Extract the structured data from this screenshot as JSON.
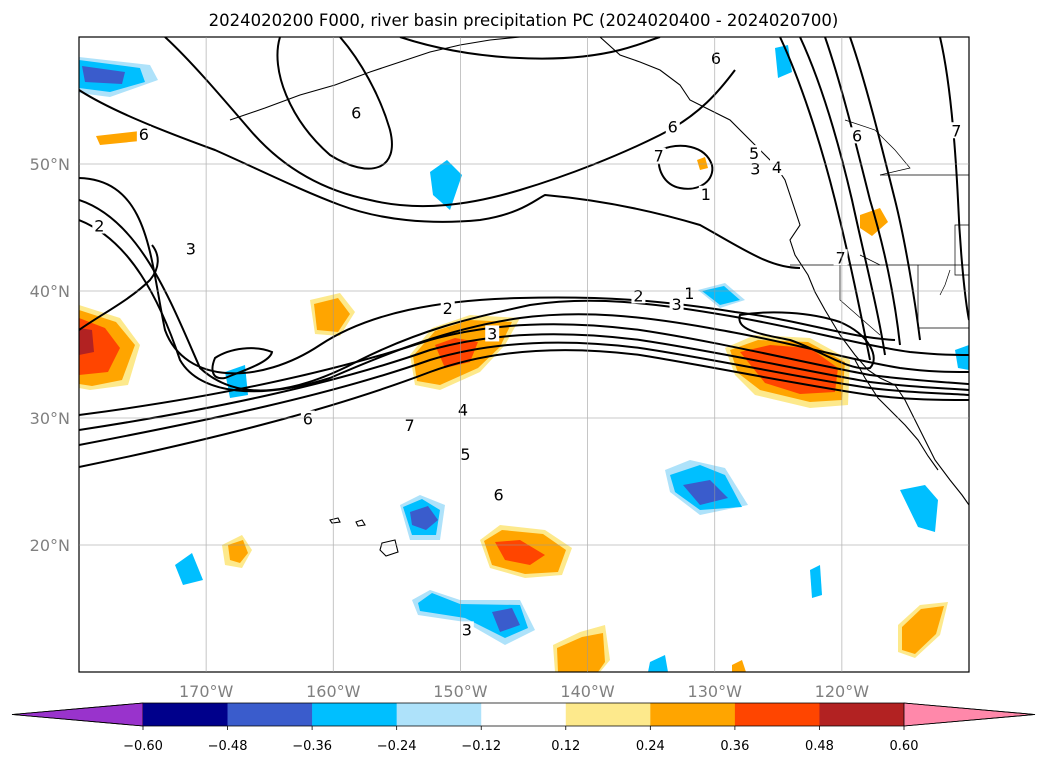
{
  "chart_data": {
    "type": "contour-map",
    "title": "2024020200 F000, river basin precipitation PC (2024020400 - 2024020700)",
    "longitude_ticks": [
      "170°W",
      "160°W",
      "150°W",
      "140°W",
      "130°W",
      "120°W"
    ],
    "latitude_ticks": [
      "50°N",
      "40°N",
      "30°N",
      "20°N"
    ],
    "extent": {
      "lon": [
        -180,
        -110
      ],
      "lat": [
        10,
        60
      ]
    },
    "grid": true,
    "colorbar": {
      "extend": "both",
      "levels": [
        -0.6,
        -0.48,
        -0.36,
        -0.24,
        -0.12,
        0.12,
        0.24,
        0.36,
        0.48,
        0.6
      ],
      "tick_labels": [
        "−0.60",
        "−0.48",
        "−0.36",
        "−0.24",
        "−0.12",
        "0.12",
        "0.24",
        "0.36",
        "0.48",
        "0.60"
      ],
      "colors": [
        "#9933cc",
        "#00008b",
        "#3a5ccc",
        "#00bfff",
        "#aee2fa",
        "#ffffff",
        "#fde98c",
        "#ffa500",
        "#ff4500",
        "#b22222",
        "#ff88aa"
      ]
    },
    "contour_labels": [
      "1",
      "2",
      "3",
      "4",
      "5",
      "6",
      "7"
    ],
    "contour_label_instances": [
      {
        "text": "6",
        "lon": -147,
        "lat": 23.8
      },
      {
        "text": "5",
        "lon": -149.6,
        "lat": 27.0
      },
      {
        "text": "4",
        "lon": -149.8,
        "lat": 30.5
      },
      {
        "text": "3",
        "lon": -147.5,
        "lat": 36.5
      },
      {
        "text": "2",
        "lon": -151.0,
        "lat": 38.5
      },
      {
        "text": "7",
        "lon": -134.4,
        "lat": 50.5
      },
      {
        "text": "6",
        "lon": -133.3,
        "lat": 52.8
      },
      {
        "text": "6",
        "lon": -129.9,
        "lat": 58.2
      },
      {
        "text": "6",
        "lon": -118.8,
        "lat": 52.1
      },
      {
        "text": "7",
        "lon": -120.1,
        "lat": 42.5
      },
      {
        "text": "7",
        "lon": -111.0,
        "lat": 52.5
      },
      {
        "text": "5",
        "lon": -126.9,
        "lat": 50.7
      },
      {
        "text": "4",
        "lon": -125.1,
        "lat": 49.6
      },
      {
        "text": "3",
        "lon": -126.8,
        "lat": 49.5
      },
      {
        "text": "1",
        "lon": -130.7,
        "lat": 47.5
      },
      {
        "text": "6",
        "lon": -158.2,
        "lat": 53.9
      },
      {
        "text": "3",
        "lon": -171.2,
        "lat": 43.2
      },
      {
        "text": "2",
        "lon": -178.4,
        "lat": 45.0
      },
      {
        "text": "6",
        "lon": -174.9,
        "lat": 52.2
      },
      {
        "text": "1",
        "lon": -132.0,
        "lat": 39.7
      },
      {
        "text": "2",
        "lon": -136.0,
        "lat": 39.5
      },
      {
        "text": "3",
        "lon": -133.0,
        "lat": 38.8
      },
      {
        "text": "7",
        "lon": -154.0,
        "lat": 29.3
      },
      {
        "text": "6",
        "lon": -162.0,
        "lat": 29.8
      },
      {
        "text": "3",
        "lon": -149.5,
        "lat": 13.2
      }
    ]
  }
}
